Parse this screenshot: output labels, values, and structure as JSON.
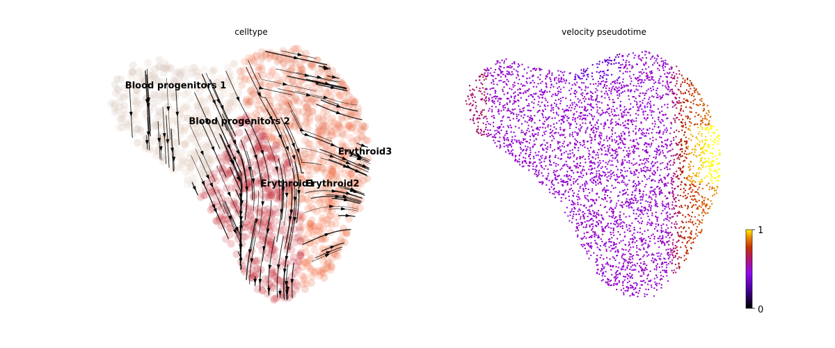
{
  "chart_data": [
    {
      "type": "scatter",
      "subtype": "umap-embedding-with-velocity-streamlines",
      "title": "celltype",
      "xlabel": "",
      "ylabel": "",
      "axes_visible": false,
      "grid": false,
      "legend": "on-data",
      "series": [
        {
          "label": "Blood progenitors 1",
          "color": "#d9c6bb"
        },
        {
          "label": "Blood progenitors 2",
          "color": "#e2cdbf"
        },
        {
          "label": "Erythroid1",
          "color": "#c9343f"
        },
        {
          "label": "Erythroid2",
          "color": "#ec7b5b"
        },
        {
          "label": "Erythroid3",
          "color": "#f0734b"
        }
      ],
      "cluster_labels": [
        {
          "text": "Blood progenitors 1",
          "emb_x": -0.95,
          "emb_y": 0.62
        },
        {
          "text": "Blood progenitors 2",
          "emb_x": -0.48,
          "emb_y": 0.35
        },
        {
          "text": "Erythroid1",
          "emb_x": 0.05,
          "emb_y": -0.12
        },
        {
          "text": "Erythroid2",
          "emb_x": 0.38,
          "emb_y": -0.12
        },
        {
          "text": "Erythroid3",
          "emb_x": 0.62,
          "emb_y": 0.12
        }
      ],
      "streamline_color": "#000000"
    },
    {
      "type": "scatter",
      "subtype": "umap-embedding-colored-by-continuous-value",
      "title": "velocity pseudotime",
      "xlabel": "",
      "ylabel": "",
      "axes_visible": false,
      "grid": false,
      "colormap": "gnuplot",
      "colorbar": {
        "min": 0,
        "max": 1,
        "ticks": [
          "0",
          "1"
        ],
        "placement": "bottom-right"
      },
      "value_trend": "low (~0.35) across left and center, rising toward the right edge; highest (~1) at the right-middle tip; lowest (~0.1) in a small patch at top-center"
    }
  ]
}
